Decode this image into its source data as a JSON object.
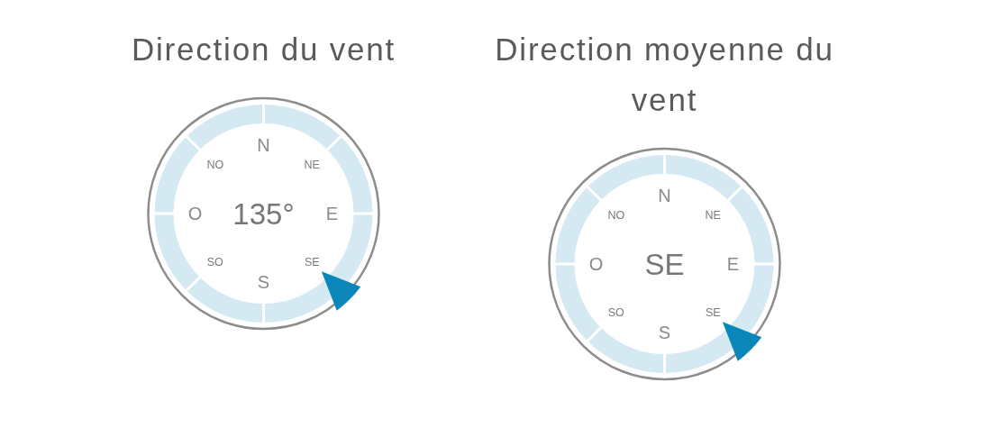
{
  "chart_data": [
    {
      "type": "other",
      "title": "Direction du vent",
      "annotations": [
        "N",
        "NE",
        "E",
        "SE",
        "S",
        "SO",
        "O",
        "NO"
      ],
      "values": [
        135
      ],
      "value_labels": [
        "135°"
      ]
    },
    {
      "type": "other",
      "title": "Direction moyenne du vent",
      "categories": [
        "N",
        "NE",
        "E",
        "SE",
        "S",
        "SO",
        "O",
        "NO"
      ],
      "needle": "SE"
    }
  ]
}
